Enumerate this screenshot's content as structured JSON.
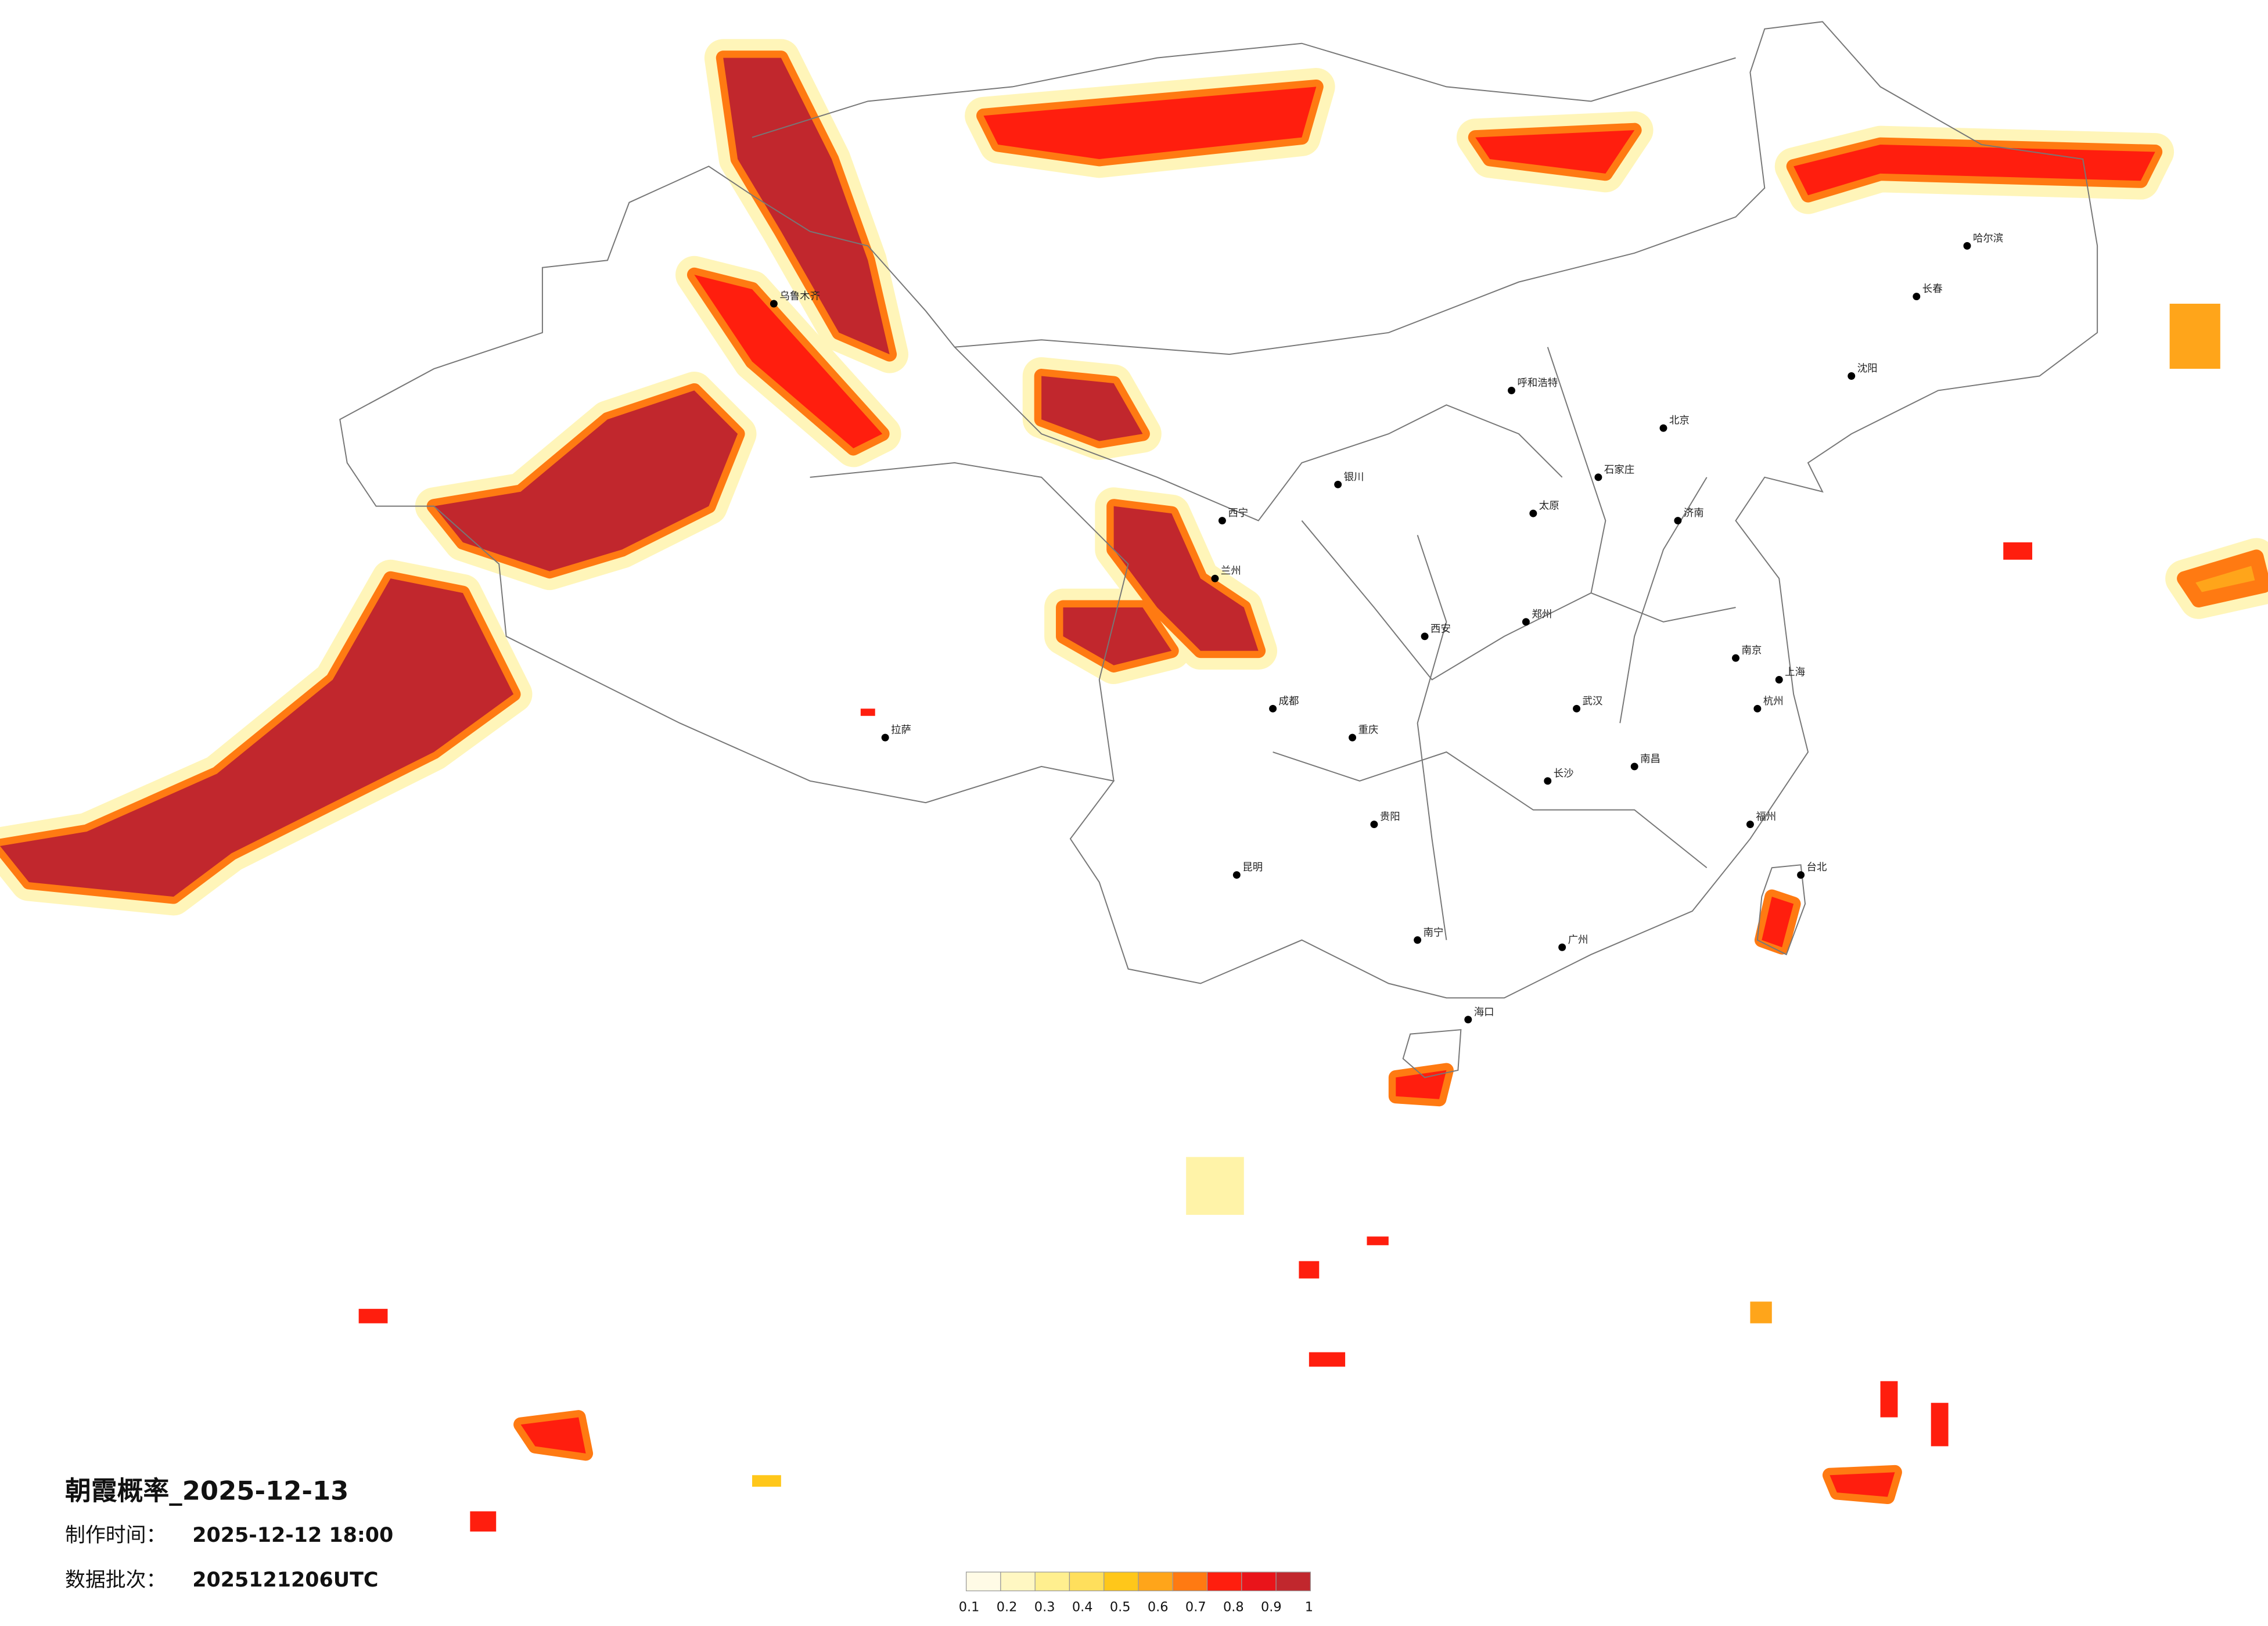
{
  "title": "朝霞概率_2025-12-13",
  "made_label": "制作时间：",
  "made_time": "2025-12-12 18:00",
  "batch_label": "数据批次：",
  "batch": "2025121206UTC",
  "legend": {
    "ticks": [
      0.1,
      0.2,
      0.3,
      0.4,
      0.5,
      0.6,
      0.7,
      0.8,
      0.9,
      1
    ],
    "colors": [
      "#fffbe6",
      "#fff7c2",
      "#ffef8f",
      "#ffdf5c",
      "#ffc71a",
      "#ffa51a",
      "#ff7a12",
      "#ff1e0e",
      "#e9141a",
      "#c1272d"
    ]
  },
  "cities": [
    "北京",
    "上海",
    "广州",
    "重庆",
    "成都",
    "武汉",
    "西安",
    "兰州",
    "乌鲁木齐",
    "拉萨",
    "哈尔滨",
    "长春",
    "沈阳",
    "呼和浩特",
    "银川",
    "郑州",
    "济南",
    "南京",
    "杭州",
    "福州",
    "南昌",
    "长沙",
    "贵阳",
    "昆明",
    "南宁",
    "海口",
    "台北",
    "西宁",
    "太原",
    "石家庄"
  ]
}
